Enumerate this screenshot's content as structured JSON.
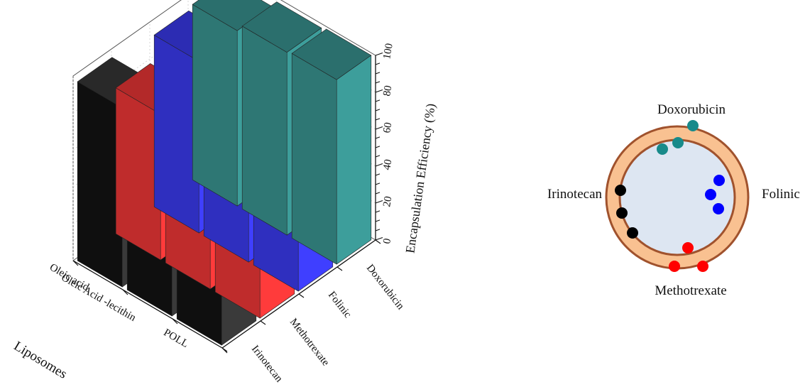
{
  "chart_data": [
    {
      "type": "bar",
      "title": "",
      "xlabel": "Liposomes",
      "ylabel": "",
      "zlabel": "Encapsulation Efficiency (%)",
      "zlim": [
        0,
        100
      ],
      "z_ticks": [
        "0",
        "20",
        "40",
        "60",
        "80",
        "100"
      ],
      "categories": [
        "POLL",
        "Oleic Acid -lecithin",
        "Oleic acid"
      ],
      "drugs": [
        "Irinotecan",
        "Methotrexate",
        "Folinic",
        "Doxorubicin"
      ],
      "series": [
        {
          "name": "Irinotecan",
          "color": "#3a3a3a",
          "values": [
            92,
            82,
            97
          ]
        },
        {
          "name": "Methotrexate",
          "color": "#ff3b3b",
          "values": [
            91,
            87,
            79
          ]
        },
        {
          "name": "Folinic",
          "color": "#3f3fff",
          "values": [
            92,
            98,
            93
          ]
        },
        {
          "name": "Doxorubicin",
          "color": "#3d9e9b",
          "values": [
            100,
            99,
            95
          ]
        }
      ],
      "grid": true,
      "legend": "none"
    }
  ],
  "diagram": {
    "labels": {
      "top": "Doxorubicin",
      "left": "Irinotecan",
      "right": "Folinic",
      "bottom": "Methotrexate"
    },
    "colors": {
      "shell_fill": "#f9c191",
      "shell_stroke": "#a0522d",
      "core_fill": "#dde6f2",
      "doxorubicin": "#188a8a",
      "folinic": "#0000ff",
      "methotrexate": "#ff0000",
      "irinotecan": "#000000"
    }
  }
}
